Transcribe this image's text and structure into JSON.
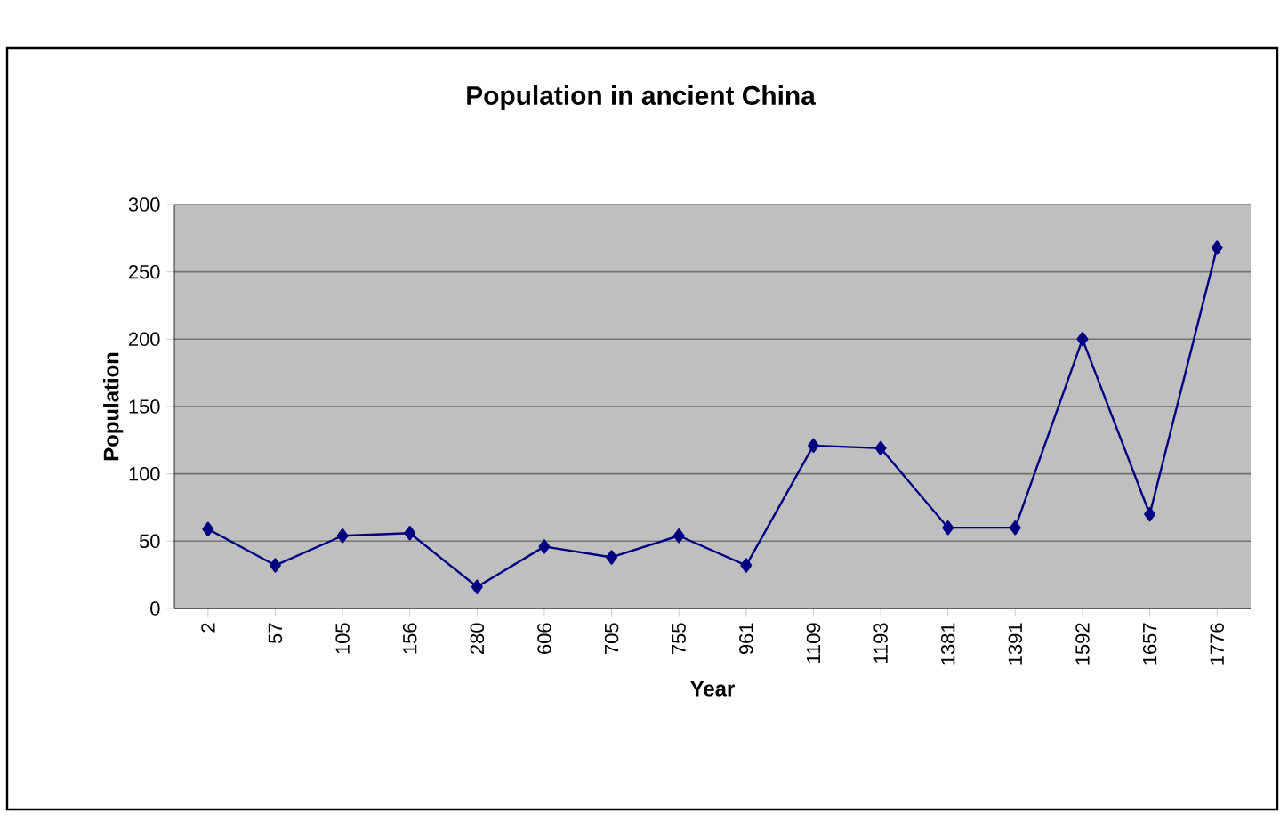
{
  "chart_data": {
    "type": "line",
    "title": "Population in ancient China",
    "xlabel": "Year",
    "ylabel": "Population",
    "categories": [
      "2",
      "57",
      "105",
      "156",
      "280",
      "606",
      "705",
      "755",
      "961",
      "1109",
      "1193",
      "1381",
      "1391",
      "1592",
      "1657",
      "1776"
    ],
    "series": [
      {
        "color": "#000080",
        "values": [
          59,
          32,
          54,
          56,
          16,
          46,
          38,
          54,
          32,
          121,
          119,
          60,
          60,
          200,
          70,
          268
        ]
      }
    ],
    "ylim": [
      0,
      300
    ],
    "yticks": [
      0,
      50,
      100,
      150,
      200,
      250,
      300
    ],
    "grid": "y",
    "marker": "diamond",
    "line_style": "solid"
  }
}
